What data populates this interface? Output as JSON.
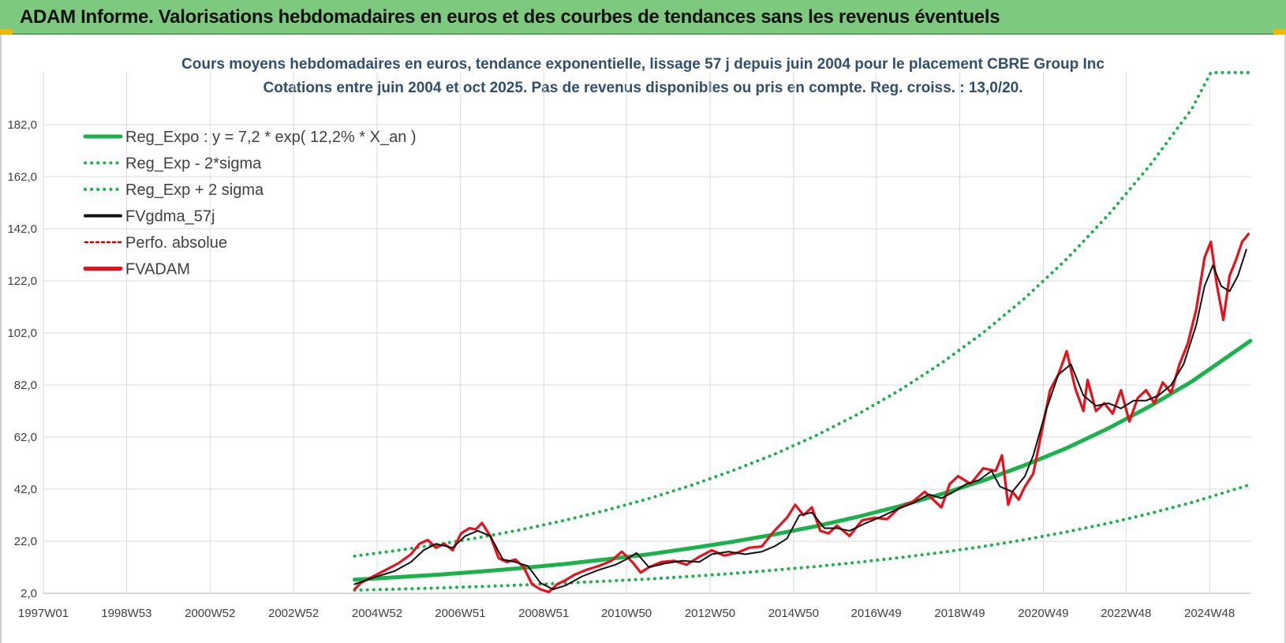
{
  "header": {
    "title": "ADAM Informe. Valorisations hebdomadaires en euros et des courbes de tendances sans les revenus éventuels"
  },
  "colors": {
    "banner": "#7dc97d",
    "green": "#19b24b",
    "red": "#e8101a",
    "black": "#111111",
    "accent": "#f0b800"
  },
  "chart_data": {
    "type": "line",
    "title": "Cours moyens hebdomadaires en euros, tendance exponentielle, lissage 57 j depuis juin 2004 pour le placement CBRE Group Inc",
    "subtitle": "Cotations entre juin 2004 et oct 2025. Pas de revenus disponibles ou pris en compte. Reg. croiss. : 13,0/20.",
    "xlabel": "",
    "ylabel": "",
    "xlim": [
      1997.0,
      2025.9
    ],
    "ylim": [
      2.0,
      202.0
    ],
    "x_ticks": [
      {
        "x": 1997.0,
        "label": "1997W01"
      },
      {
        "x": 1998.99,
        "label": "1998W53"
      },
      {
        "x": 2000.99,
        "label": "2000W52"
      },
      {
        "x": 2002.99,
        "label": "2002W52"
      },
      {
        "x": 2004.99,
        "label": "2004W52"
      },
      {
        "x": 2006.98,
        "label": "2006W51"
      },
      {
        "x": 2008.98,
        "label": "2008W51"
      },
      {
        "x": 2010.96,
        "label": "2010W50"
      },
      {
        "x": 2012.96,
        "label": "2012W50"
      },
      {
        "x": 2014.96,
        "label": "2014W50"
      },
      {
        "x": 2016.94,
        "label": "2016W49"
      },
      {
        "x": 2018.94,
        "label": "2018W49"
      },
      {
        "x": 2020.94,
        "label": "2020W49"
      },
      {
        "x": 2022.92,
        "label": "2022W48"
      },
      {
        "x": 2024.92,
        "label": "2024W48"
      }
    ],
    "y_ticks": [
      "2,0",
      "22,0",
      "42,0",
      "62,0",
      "82,0",
      "102,0",
      "122,0",
      "142,0",
      "162,0",
      "182,0"
    ],
    "y_tick_values": [
      2,
      22,
      42,
      62,
      82,
      102,
      122,
      142,
      162,
      182
    ],
    "grid": true,
    "legend": {
      "position": "top-left",
      "entries": [
        {
          "label": "Reg_Expo : y = 7,2 * exp( 12,2% *  X_an )",
          "color": "#19b24b",
          "style": "solid"
        },
        {
          "label": "Reg_Exp - 2*sigma",
          "color": "#19b24b",
          "style": "dotted"
        },
        {
          "label": "Reg_Exp + 2 sigma",
          "color": "#19b24b",
          "style": "dotted"
        },
        {
          "label": "FVgdma_57j",
          "color": "#111111",
          "style": "solid"
        },
        {
          "label": "Perfo. absolue",
          "color": "#c00000",
          "style": "dotted"
        },
        {
          "label": "FVADAM",
          "color": "#e8101a",
          "style": "solid"
        }
      ]
    },
    "series": [
      {
        "name": "Reg_Expo : y = 7,2 * exp( 12,2% *  X_an )",
        "x": [
          2004.45,
          2005.5,
          2006.5,
          2007.5,
          2008.5,
          2009.5,
          2010.5,
          2011.5,
          2012.5,
          2013.5,
          2014.5,
          2015.5,
          2016.5,
          2017.5,
          2018.5,
          2019.5,
          2020.5,
          2021.5,
          2022.5,
          2023.5,
          2024.5,
          2025.9
        ],
        "values": [
          7.2,
          8.2,
          9.2,
          10.4,
          11.8,
          13.3,
          15.1,
          17.0,
          19.3,
          21.8,
          24.6,
          27.8,
          31.4,
          35.5,
          40.1,
          45.3,
          51.2,
          57.8,
          65.4,
          73.9,
          83.4,
          99.0
        ]
      },
      {
        "name": "Reg_Exp - 2*sigma",
        "x": [
          2004.45,
          2005.5,
          2006.5,
          2007.5,
          2008.5,
          2009.5,
          2010.5,
          2011.5,
          2012.5,
          2013.5,
          2014.5,
          2015.5,
          2016.5,
          2017.5,
          2018.5,
          2019.5,
          2020.5,
          2021.5,
          2022.5,
          2023.5,
          2024.5,
          2025.9
        ],
        "values": [
          3.2,
          3.6,
          4.1,
          4.6,
          5.2,
          5.9,
          6.7,
          7.5,
          8.5,
          9.6,
          10.9,
          12.3,
          13.9,
          15.7,
          17.7,
          20.0,
          22.6,
          25.6,
          28.9,
          32.7,
          36.9,
          43.8
        ]
      },
      {
        "name": "Reg_Exp + 2 sigma",
        "x": [
          2004.45,
          2005.5,
          2006.5,
          2007.5,
          2008.5,
          2009.5,
          2010.5,
          2011.5,
          2012.5,
          2013.5,
          2014.5,
          2015.5,
          2016.5,
          2017.5,
          2018.5,
          2019.5,
          2020.5,
          2021.5,
          2022.5,
          2023.5,
          2024.5,
          2024.95,
          2025.9
        ],
        "values": [
          16.3,
          18.5,
          20.9,
          23.6,
          26.6,
          30.1,
          34.0,
          38.4,
          43.4,
          49.1,
          55.4,
          62.6,
          70.8,
          80.0,
          90.4,
          102.1,
          115.4,
          130.4,
          147.4,
          166.5,
          188.2,
          202.0,
          202.0
        ]
      },
      {
        "name": "FVgdma_57j",
        "x": [
          2004.45,
          2004.9,
          2005.4,
          2005.8,
          2006.1,
          2006.4,
          2006.8,
          2007.1,
          2007.4,
          2007.7,
          2008.0,
          2008.3,
          2008.6,
          2008.9,
          2009.2,
          2009.5,
          2009.9,
          2010.3,
          2010.7,
          2010.95,
          2011.2,
          2011.5,
          2011.9,
          2012.3,
          2012.7,
          2013.0,
          2013.4,
          2013.8,
          2014.2,
          2014.5,
          2014.8,
          2015.1,
          2015.4,
          2015.7,
          2016.0,
          2016.3,
          2016.7,
          2017.0,
          2017.4,
          2017.8,
          2018.2,
          2018.5,
          2018.8,
          2019.1,
          2019.4,
          2019.7,
          2019.9,
          2020.2,
          2020.5,
          2020.7,
          2021.0,
          2021.3,
          2021.6,
          2021.9,
          2022.2,
          2022.5,
          2022.8,
          2023.1,
          2023.4,
          2023.7,
          2024.0,
          2024.3,
          2024.6,
          2024.8,
          2025.0,
          2025.2,
          2025.4,
          2025.6,
          2025.8
        ],
        "values": [
          5.5,
          8.0,
          10.5,
          14.0,
          18.5,
          21.0,
          19.5,
          24.0,
          26.0,
          24.0,
          15.0,
          14.0,
          12.5,
          6.0,
          3.5,
          5.0,
          8.5,
          11.0,
          13.0,
          15.0,
          17.5,
          12.0,
          13.5,
          14.5,
          14.0,
          17.0,
          18.0,
          17.0,
          18.0,
          20.0,
          23.0,
          32.0,
          33.0,
          27.0,
          27.0,
          26.0,
          29.0,
          31.0,
          34.0,
          36.5,
          40.0,
          38.5,
          41.0,
          44.0,
          45.5,
          49.0,
          43.0,
          41.0,
          47.0,
          55.0,
          72.0,
          86.0,
          90.0,
          78.0,
          74.0,
          75.0,
          73.0,
          76.0,
          76.0,
          78.0,
          82.0,
          90.0,
          105.0,
          120.0,
          128.0,
          120.0,
          118.0,
          124.0,
          134.0
        ]
      },
      {
        "name": "FVADAM",
        "x": [
          2004.45,
          2004.6,
          2004.9,
          2005.2,
          2005.5,
          2005.8,
          2006.0,
          2006.2,
          2006.4,
          2006.6,
          2006.8,
          2007.0,
          2007.2,
          2007.35,
          2007.5,
          2007.7,
          2007.9,
          2008.1,
          2008.3,
          2008.5,
          2008.7,
          2008.9,
          2009.1,
          2009.3,
          2009.5,
          2009.7,
          2010.0,
          2010.3,
          2010.6,
          2010.85,
          2011.1,
          2011.3,
          2011.5,
          2011.8,
          2012.1,
          2012.4,
          2012.7,
          2013.0,
          2013.3,
          2013.6,
          2013.9,
          2014.2,
          2014.5,
          2014.8,
          2015.0,
          2015.2,
          2015.4,
          2015.6,
          2015.8,
          2016.0,
          2016.3,
          2016.6,
          2016.9,
          2017.2,
          2017.5,
          2017.8,
          2018.1,
          2018.3,
          2018.5,
          2018.7,
          2018.9,
          2019.2,
          2019.5,
          2019.8,
          2019.95,
          2020.1,
          2020.2,
          2020.35,
          2020.5,
          2020.7,
          2020.9,
          2021.1,
          2021.3,
          2021.5,
          2021.7,
          2021.9,
          2022.0,
          2022.2,
          2022.4,
          2022.6,
          2022.8,
          2023.0,
          2023.2,
          2023.4,
          2023.6,
          2023.8,
          2024.0,
          2024.2,
          2024.4,
          2024.6,
          2024.8,
          2024.95,
          2025.1,
          2025.25,
          2025.4,
          2025.55,
          2025.7,
          2025.85
        ],
        "values": [
          3.5,
          6.0,
          8.5,
          11.0,
          13.5,
          17.0,
          21.0,
          22.5,
          19.5,
          21.0,
          18.5,
          25.0,
          27.0,
          26.5,
          29.0,
          24.0,
          15.5,
          14.0,
          15.0,
          12.0,
          5.5,
          3.5,
          2.5,
          5.5,
          7.0,
          9.0,
          11.0,
          12.5,
          14.5,
          18.0,
          14.0,
          10.0,
          12.0,
          14.0,
          14.5,
          13.0,
          16.0,
          18.5,
          16.5,
          17.5,
          19.5,
          20.0,
          26.0,
          31.0,
          36.0,
          32.0,
          35.0,
          26.0,
          25.0,
          28.0,
          24.0,
          30.0,
          31.0,
          30.5,
          35.0,
          37.0,
          41.0,
          38.0,
          35.0,
          44.0,
          47.0,
          44.0,
          50.0,
          49.0,
          55.0,
          36.0,
          41.0,
          38.0,
          43.0,
          48.0,
          64.0,
          80.0,
          86.0,
          95.0,
          81.0,
          72.0,
          84.0,
          72.0,
          75.0,
          71.0,
          80.0,
          68.0,
          77.0,
          80.0,
          75.0,
          83.0,
          79.0,
          90.0,
          98.0,
          111.0,
          131.0,
          137.0,
          120.0,
          107.0,
          124.0,
          130.0,
          137.0,
          140.0
        ]
      }
    ]
  }
}
